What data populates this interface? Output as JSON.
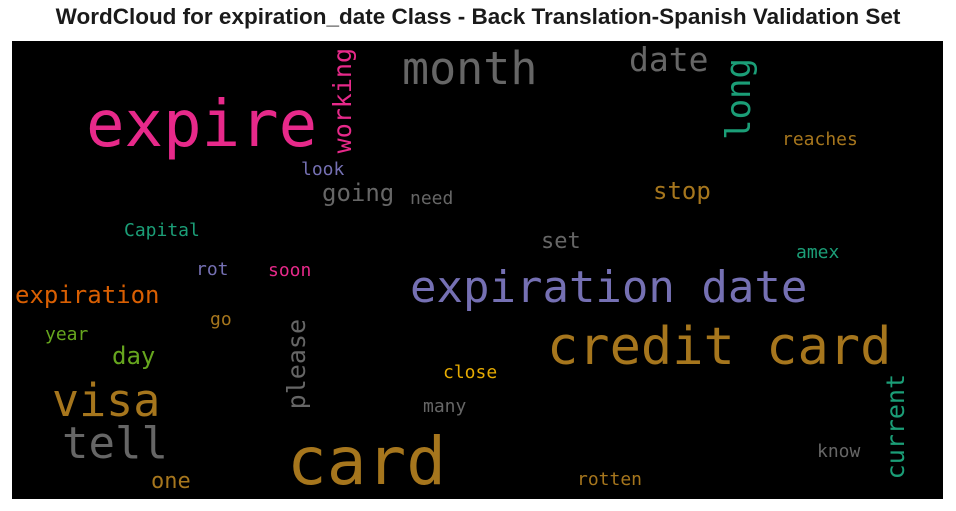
{
  "chart_data": {
    "type": "wordcloud",
    "title": "WordCloud for expiration_date Class - Back Translation-Spanish Validation Set",
    "background": "#000000",
    "colors": {
      "pink": "#e7298a",
      "gray": "#666666",
      "teal": "#1b9e77",
      "gold": "#a6761d",
      "purple": "#7570b3",
      "orange": "#d95f02",
      "green": "#66a61e",
      "yellow": "#e6ab02"
    },
    "words": [
      {
        "text": "card",
        "weight": 1.0,
        "color": "#a6761d",
        "orientation": "horizontal"
      },
      {
        "text": "expire",
        "weight": 0.95,
        "color": "#e7298a",
        "orientation": "horizontal"
      },
      {
        "text": "credit card",
        "weight": 0.78,
        "color": "#a6761d",
        "orientation": "horizontal"
      },
      {
        "text": "expiration date",
        "weight": 0.65,
        "color": "#7570b3",
        "orientation": "horizontal"
      },
      {
        "text": "month",
        "weight": 0.63,
        "color": "#666666",
        "orientation": "horizontal"
      },
      {
        "text": "visa",
        "weight": 0.6,
        "color": "#a6761d",
        "orientation": "horizontal"
      },
      {
        "text": "tell",
        "weight": 0.58,
        "color": "#666666",
        "orientation": "horizontal"
      },
      {
        "text": "long",
        "weight": 0.48,
        "color": "#1b9e77",
        "orientation": "vertical"
      },
      {
        "text": "date",
        "weight": 0.46,
        "color": "#666666",
        "orientation": "horizontal"
      },
      {
        "text": "current",
        "weight": 0.4,
        "color": "#1b9e77",
        "orientation": "vertical"
      },
      {
        "text": "please",
        "weight": 0.4,
        "color": "#666666",
        "orientation": "vertical"
      },
      {
        "text": "working",
        "weight": 0.38,
        "color": "#e7298a",
        "orientation": "vertical"
      },
      {
        "text": "expiration",
        "weight": 0.36,
        "color": "#d95f02",
        "orientation": "horizontal"
      },
      {
        "text": "going",
        "weight": 0.36,
        "color": "#666666",
        "orientation": "horizontal"
      },
      {
        "text": "stop",
        "weight": 0.35,
        "color": "#a6761d",
        "orientation": "horizontal"
      },
      {
        "text": "day",
        "weight": 0.35,
        "color": "#66a61e",
        "orientation": "horizontal"
      },
      {
        "text": "one",
        "weight": 0.33,
        "color": "#a6761d",
        "orientation": "horizontal"
      },
      {
        "text": "set",
        "weight": 0.33,
        "color": "#666666",
        "orientation": "horizontal"
      },
      {
        "text": "Capital",
        "weight": 0.27,
        "color": "#1b9e77",
        "orientation": "horizontal"
      },
      {
        "text": "look",
        "weight": 0.27,
        "color": "#7570b3",
        "orientation": "horizontal"
      },
      {
        "text": "need",
        "weight": 0.27,
        "color": "#666666",
        "orientation": "horizontal"
      },
      {
        "text": "reaches",
        "weight": 0.27,
        "color": "#a6761d",
        "orientation": "horizontal"
      },
      {
        "text": "amex",
        "weight": 0.27,
        "color": "#1b9e77",
        "orientation": "horizontal"
      },
      {
        "text": "rot",
        "weight": 0.27,
        "color": "#7570b3",
        "orientation": "horizontal"
      },
      {
        "text": "soon",
        "weight": 0.27,
        "color": "#e7298a",
        "orientation": "horizontal"
      },
      {
        "text": "year",
        "weight": 0.27,
        "color": "#66a61e",
        "orientation": "horizontal"
      },
      {
        "text": "go",
        "weight": 0.27,
        "color": "#a6761d",
        "orientation": "horizontal"
      },
      {
        "text": "close",
        "weight": 0.27,
        "color": "#e6ab02",
        "orientation": "horizontal"
      },
      {
        "text": "many",
        "weight": 0.27,
        "color": "#666666",
        "orientation": "horizontal"
      },
      {
        "text": "know",
        "weight": 0.27,
        "color": "#666666",
        "orientation": "horizontal"
      },
      {
        "text": "rotten",
        "weight": 0.27,
        "color": "#a6761d",
        "orientation": "horizontal"
      }
    ]
  }
}
